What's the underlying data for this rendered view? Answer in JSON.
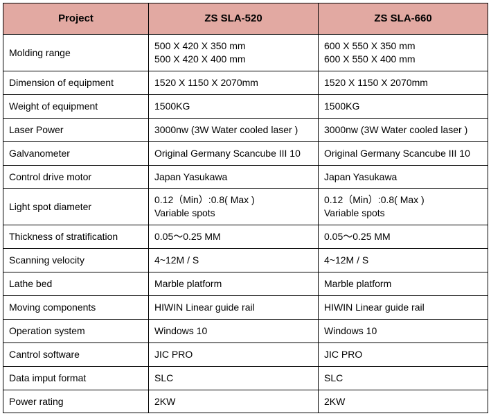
{
  "table": {
    "header_bg": "#e2a9a2",
    "border_color": "#000000",
    "columns": [
      "Project",
      "ZS SLA-520",
      "ZS SLA-660"
    ],
    "rows": [
      {
        "label": "Molding range",
        "c1a": "500 X 420 X 350 mm",
        "c1b": "500 X 420 X 400 mm",
        "c2a": "600 X 550 X 350 mm",
        "c2b": "600 X 550 X 400 mm",
        "multiline": true
      },
      {
        "label": "Dimension of equipment",
        "c1": "1520 X 1150 X 2070mm",
        "c2": "1520 X 1150 X 2070mm"
      },
      {
        "label": "Weight of equipment",
        "c1": "1500KG",
        "c2": "1500KG"
      },
      {
        "label": "Laser Power",
        "c1": "3000nw (3W Water cooled laser )",
        "c2": "3000nw (3W Water cooled laser )"
      },
      {
        "label": "Galvanometer",
        "c1": "Original Germany Scancube III 10",
        "c2": "Original Germany Scancube III 10"
      },
      {
        "label": "Control drive motor",
        "c1": "Japan Yasukawa",
        "c2": "Japan Yasukawa"
      },
      {
        "label": "Light spot diameter",
        "c1a": "0.12（Min）:0.8( Max )",
        "c1b": "Variable spots",
        "c2a": "0.12（Min）:0.8( Max )",
        "c2b": "Variable spots",
        "multiline": true
      },
      {
        "label": "Thickness of stratification",
        "c1": "0.05～0.25 MM",
        "c2": "0.05～0.25 MM"
      },
      {
        "label": "Scanning velocity",
        "c1": "4~12M / S",
        "c2": "4~12M / S"
      },
      {
        "label": "Lathe bed",
        "c1": "Marble platform",
        "c2": "Marble platform"
      },
      {
        "label": "Moving components",
        "c1": "HIWIN Linear guide rail",
        "c2": "HIWIN Linear guide rail"
      },
      {
        "label": "Operation system",
        "c1": "Windows 10",
        "c2": "Windows 10"
      },
      {
        "label": "Cantrol software",
        "c1": "JIC PRO",
        "c2": "JIC PRO"
      },
      {
        "label": "Data imput format",
        "c1": "SLC",
        "c2": "SLC"
      },
      {
        "label": "Power rating",
        "c1": "2KW",
        "c2": "2KW"
      }
    ]
  }
}
